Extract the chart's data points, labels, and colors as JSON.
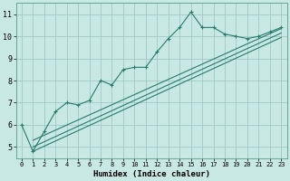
{
  "xlabel": "Humidex (Indice chaleur)",
  "bg_color": "#c8e8e4",
  "grid_color": "#a0c8c4",
  "line_color": "#2a7a6a",
  "xlim": [
    -0.5,
    23.5
  ],
  "ylim": [
    4.5,
    11.5
  ],
  "xticks": [
    0,
    1,
    2,
    3,
    4,
    5,
    6,
    7,
    8,
    9,
    10,
    11,
    12,
    13,
    14,
    15,
    16,
    17,
    18,
    19,
    20,
    21,
    22,
    23
  ],
  "yticks": [
    5,
    6,
    7,
    8,
    9,
    10,
    11
  ],
  "main_line_x": [
    0,
    1,
    2,
    3,
    4,
    5,
    6,
    7,
    8,
    9,
    10,
    11,
    12,
    13,
    14,
    15,
    16,
    17,
    18,
    19,
    20,
    21,
    22,
    23
  ],
  "main_line_y": [
    6.0,
    4.8,
    5.7,
    6.6,
    7.0,
    6.9,
    7.1,
    8.0,
    7.8,
    8.5,
    8.6,
    8.6,
    9.3,
    9.9,
    10.4,
    11.1,
    10.4,
    10.4,
    10.1,
    10.0,
    9.9,
    10.0,
    10.2,
    10.4
  ],
  "trend1_x": [
    1,
    23
  ],
  "trend1_y": [
    5.3,
    10.35
  ],
  "trend2_x": [
    1,
    23
  ],
  "trend2_y": [
    5.0,
    10.15
  ],
  "trend3_x": [
    1,
    23
  ],
  "trend3_y": [
    4.8,
    9.95
  ]
}
